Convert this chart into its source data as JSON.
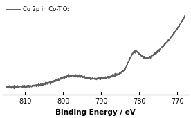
{
  "title": "",
  "xlabel": "Binding Energy / eV",
  "ylabel": "",
  "legend_label": "Co 2p in Co-TiO₂",
  "xticks": [
    810,
    800,
    790,
    780,
    770
  ],
  "line_color": "#606060",
  "line_width": 0.7,
  "bg_color": "#ffffff",
  "seed": 17,
  "noise_level": 0.018,
  "baseline": 0.1,
  "n_points": 2000
}
